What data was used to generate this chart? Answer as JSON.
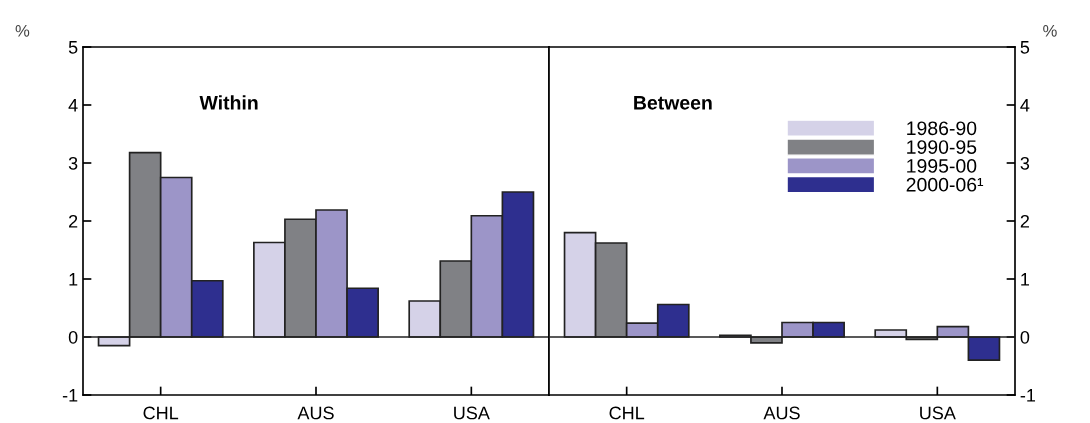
{
  "chart_data": [
    {
      "type": "bar",
      "categories": [
        "CHL",
        "AUS",
        "USA"
      ],
      "ylabel": "%",
      "ylim": [
        -1,
        5
      ],
      "yticks": [
        -1,
        0,
        1,
        2,
        3,
        4,
        5
      ],
      "annotations": [
        "Within"
      ],
      "series": [
        {
          "color": "#d5d2e8",
          "values": [
            -0.15,
            1.63,
            0.62
          ]
        },
        {
          "color": "#808185",
          "values": [
            3.18,
            2.03,
            1.31
          ]
        },
        {
          "color": "#9c95c8",
          "values": [
            2.75,
            2.19,
            2.09
          ]
        },
        {
          "color": "#2e2f8f",
          "values": [
            0.97,
            0.84,
            2.5
          ]
        }
      ]
    },
    {
      "type": "bar",
      "categories": [
        "CHL",
        "AUS",
        "USA"
      ],
      "y2label": "%",
      "y2lim": [
        -1,
        5
      ],
      "y2ticks": [
        -1,
        0,
        1,
        2,
        3,
        4,
        5
      ],
      "annotations": [
        "Between"
      ],
      "legend": "top right",
      "series": [
        {
          "name": "1986-90",
          "color": "#d5d2e8",
          "axis": "y2",
          "values": [
            1.8,
            0.03,
            0.12
          ]
        },
        {
          "name": "1990-95",
          "color": "#808185",
          "axis": "y2",
          "values": [
            1.62,
            -0.1,
            -0.04
          ]
        },
        {
          "name": "1995-00",
          "color": "#9c95c8",
          "axis": "y2",
          "values": [
            0.24,
            0.25,
            0.18
          ]
        },
        {
          "name": "2000-06¹",
          "color": "#2e2f8f",
          "axis": "y2",
          "values": [
            0.56,
            0.25,
            -0.4
          ]
        }
      ]
    }
  ]
}
